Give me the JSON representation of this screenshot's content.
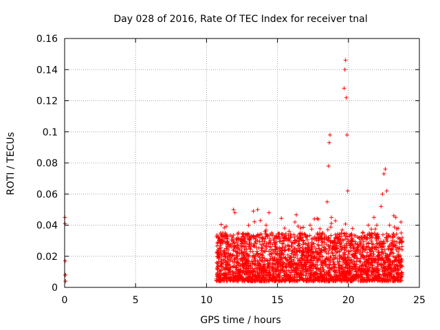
{
  "chart_data": {
    "type": "scatter",
    "title": "Day 028 of 2016, Rate Of TEC Index for receiver tnal",
    "xlabel": "GPS time / hours",
    "ylabel": "ROTI / TECUs",
    "xlim": [
      0,
      25
    ],
    "ylim": [
      0,
      0.16
    ],
    "x_ticks": [
      0,
      5,
      10,
      15,
      20,
      25
    ],
    "x_tick_labels": [
      "0",
      "5",
      "10",
      "15",
      "20",
      "25"
    ],
    "y_ticks": [
      0,
      0.02,
      0.04,
      0.06,
      0.08,
      0.1,
      0.12,
      0.14,
      0.16
    ],
    "y_tick_labels": [
      "0",
      "0.02",
      "0.04",
      "0.06",
      "0.08",
      "0.1",
      "0.12",
      "0.14",
      "0.16"
    ],
    "grid": true,
    "marker": "+",
    "color": "#ff0000",
    "series": [
      {
        "name": "ROTI",
        "points": [
          [
            0.02,
            0.045
          ],
          [
            0.03,
            0.041
          ],
          [
            0.04,
            0.017
          ],
          [
            0.05,
            0.008
          ],
          [
            0.06,
            0.008
          ],
          [
            0.07,
            0.004
          ],
          [
            10.8,
            0.012
          ],
          [
            10.9,
            0.025
          ],
          [
            11.0,
            0.035
          ],
          [
            11.2,
            0.018
          ],
          [
            11.4,
            0.022
          ],
          [
            11.6,
            0.015
          ],
          [
            11.9,
            0.05
          ],
          [
            12.0,
            0.048
          ],
          [
            12.2,
            0.02
          ],
          [
            12.5,
            0.028
          ],
          [
            12.8,
            0.016
          ],
          [
            13.0,
            0.033
          ],
          [
            13.3,
            0.049
          ],
          [
            13.6,
            0.05
          ],
          [
            13.8,
            0.043
          ],
          [
            14.0,
            0.027
          ],
          [
            14.2,
            0.04
          ],
          [
            14.4,
            0.048
          ],
          [
            14.6,
            0.035
          ],
          [
            15.0,
            0.022
          ],
          [
            15.3,
            0.015
          ],
          [
            15.5,
            0.038
          ],
          [
            15.8,
            0.024
          ],
          [
            16.0,
            0.018
          ],
          [
            16.3,
            0.03
          ],
          [
            16.6,
            0.035
          ],
          [
            17.0,
            0.028
          ],
          [
            17.3,
            0.04
          ],
          [
            17.6,
            0.044
          ],
          [
            17.9,
            0.03
          ],
          [
            18.2,
            0.035
          ],
          [
            18.5,
            0.055
          ],
          [
            18.6,
            0.078
          ],
          [
            18.65,
            0.093
          ],
          [
            18.7,
            0.098
          ],
          [
            18.8,
            0.045
          ],
          [
            19.0,
            0.03
          ],
          [
            19.2,
            0.025
          ],
          [
            19.5,
            0.035
          ],
          [
            19.7,
            0.128
          ],
          [
            19.75,
            0.14
          ],
          [
            19.8,
            0.146
          ],
          [
            19.85,
            0.122
          ],
          [
            19.9,
            0.098
          ],
          [
            19.95,
            0.062
          ],
          [
            20.2,
            0.03
          ],
          [
            20.5,
            0.028
          ],
          [
            20.8,
            0.022
          ],
          [
            21.0,
            0.035
          ],
          [
            21.4,
            0.04
          ],
          [
            21.8,
            0.045
          ],
          [
            22.0,
            0.04
          ],
          [
            22.3,
            0.052
          ],
          [
            22.4,
            0.06
          ],
          [
            22.5,
            0.073
          ],
          [
            22.6,
            0.076
          ],
          [
            22.7,
            0.062
          ],
          [
            22.9,
            0.04
          ],
          [
            23.2,
            0.046
          ],
          [
            23.5,
            0.038
          ],
          [
            23.7,
            0.042
          ]
        ],
        "dense_band": {
          "x_range": [
            10.7,
            23.8
          ],
          "y_low": 0.004,
          "y_high": 0.035,
          "count": 2600,
          "seed": 28
        }
      }
    ]
  }
}
